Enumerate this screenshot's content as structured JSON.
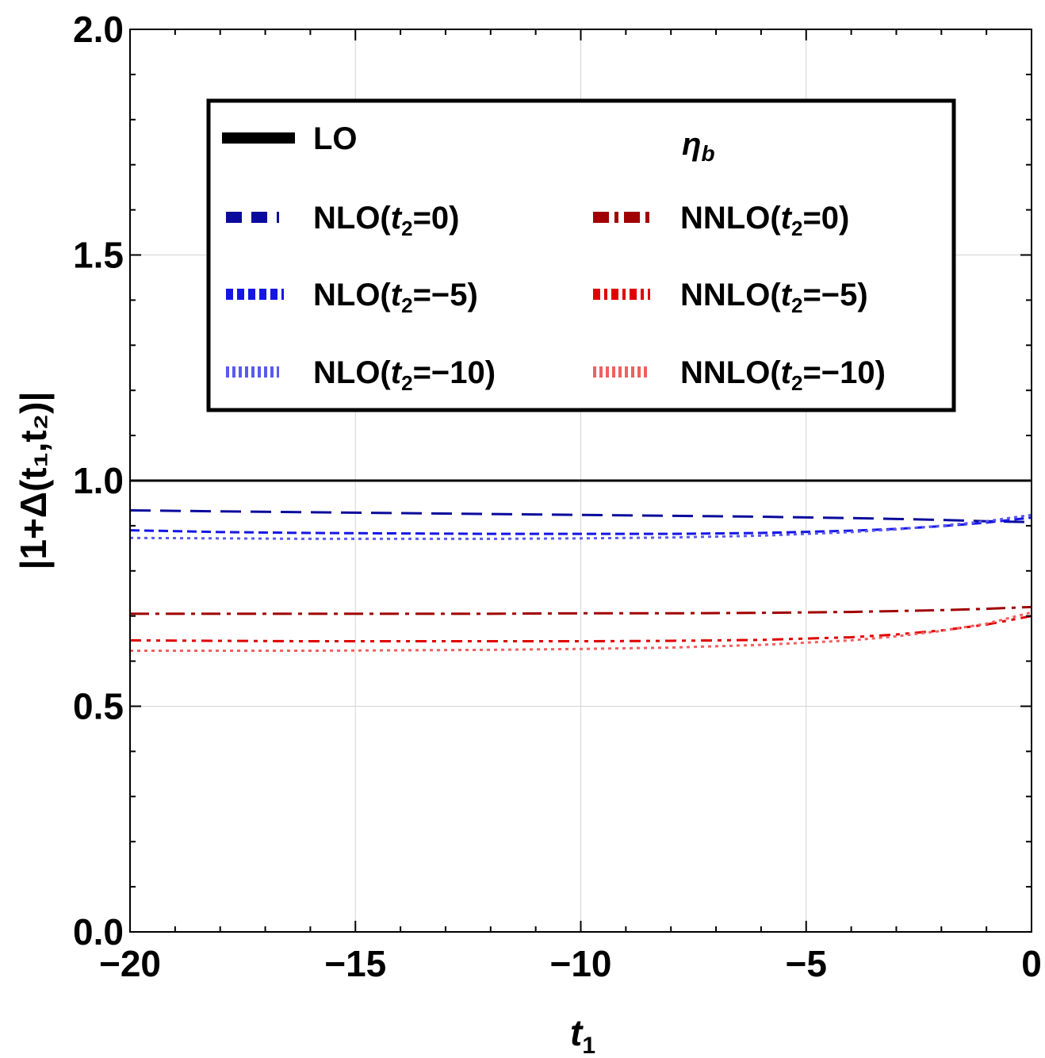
{
  "chart_data": {
    "type": "line",
    "title": "",
    "xlabel": "t",
    "xlabel_sub": "1",
    "ylabel": "|1+Δ(t₁,t₂)|",
    "xlim": [
      -20,
      0
    ],
    "ylim": [
      0,
      2
    ],
    "x_ticks": [
      -20,
      -15,
      -10,
      -5,
      0
    ],
    "x_tick_labels": [
      "−20",
      "−15",
      "−10",
      "−5",
      "0"
    ],
    "y_ticks": [
      0,
      0.5,
      1,
      1.5,
      2
    ],
    "y_tick_labels": [
      "0.0",
      "0.5",
      "1.0",
      "1.5",
      "2.0"
    ],
    "grid": true,
    "legend_position": "top-center",
    "annotation": "η_b",
    "x": [
      -20,
      -18,
      -16,
      -14,
      -12,
      -10,
      -8,
      -6,
      -4,
      -3,
      -2,
      -1,
      0
    ],
    "series": [
      {
        "name": "LO",
        "label_text": "LO",
        "color": "#000000",
        "style": "solid",
        "values": [
          1,
          1,
          1,
          1,
          1,
          1,
          1,
          1,
          1,
          1,
          1,
          1,
          1
        ]
      },
      {
        "name": "NLO(t2=0)",
        "label_text": "NLO(t2=0)",
        "color": "#0a0a9c",
        "style": "dashed",
        "values": [
          0.934,
          0.932,
          0.93,
          0.928,
          0.926,
          0.924,
          0.922,
          0.92,
          0.917,
          0.915,
          0.913,
          0.91,
          0.908
        ]
      },
      {
        "name": "NLO(t2=-5)",
        "label_text": "NLO(t2=−5)",
        "color": "#1515e6",
        "style": "shortdash",
        "values": [
          0.89,
          0.886,
          0.884,
          0.883,
          0.882,
          0.882,
          0.882,
          0.884,
          0.889,
          0.893,
          0.899,
          0.907,
          0.918
        ]
      },
      {
        "name": "NLO(t2=-10)",
        "label_text": "NLO(t2=−10)",
        "color": "#5a5aee",
        "style": "dotted",
        "values": [
          0.873,
          0.872,
          0.871,
          0.871,
          0.871,
          0.872,
          0.874,
          0.878,
          0.886,
          0.892,
          0.9,
          0.91,
          0.924
        ]
      },
      {
        "name": "NNLO(t2=0)",
        "label_text": "NNLO(t2=0)",
        "color": "#a00000",
        "style": "dashdot",
        "values": [
          0.705,
          0.705,
          0.705,
          0.705,
          0.705,
          0.706,
          0.706,
          0.707,
          0.709,
          0.711,
          0.713,
          0.716,
          0.72
        ]
      },
      {
        "name": "NNLO(t2=-5)",
        "label_text": "NNLO(t2=−5)",
        "color": "#e00000",
        "style": "dashdotdot",
        "values": [
          0.646,
          0.645,
          0.644,
          0.644,
          0.644,
          0.644,
          0.645,
          0.647,
          0.653,
          0.659,
          0.668,
          0.681,
          0.7
        ]
      },
      {
        "name": "NNLO(t2=-10)",
        "label_text": "NNLO(t2=−10)",
        "color": "#f06060",
        "style": "dotted",
        "values": [
          0.623,
          0.623,
          0.623,
          0.624,
          0.625,
          0.627,
          0.63,
          0.636,
          0.646,
          0.655,
          0.667,
          0.683,
          0.708
        ]
      }
    ]
  }
}
